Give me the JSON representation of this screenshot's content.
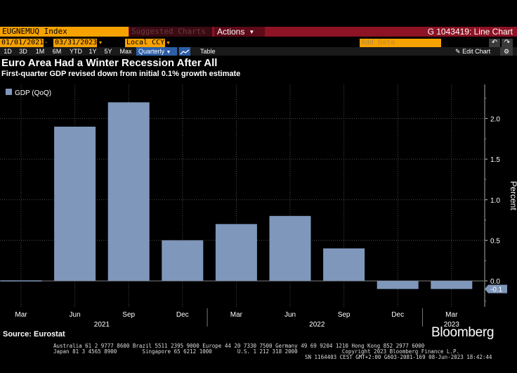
{
  "toolbar": {
    "ticker": "EUGNEMUQ Index",
    "suggested": "Suggested Charts",
    "actions": "Actions",
    "window_title": "G 1043419: Line Chart",
    "start_date": "01/01/2021",
    "end_date": "03/31/2023",
    "currency": "Local CCY",
    "add_data_placeholder": "Add Data",
    "edit_chart": "Edit Chart",
    "ranges": [
      "1D",
      "3D",
      "1M",
      "6M",
      "YTD",
      "1Y",
      "5Y",
      "Max"
    ],
    "frequency": "Quarterly",
    "table": "Table"
  },
  "colors": {
    "bar": "#7f97bb",
    "orange": "#f6a200",
    "toolbar_red": "#8d1325",
    "accent_blue": "#2d5fa8"
  },
  "chart_data": {
    "type": "bar",
    "title": "Euro Area Had a Winter Recession After All",
    "subtitle": "First-quarter GDP revised down from initial 0.1% growth estimate",
    "xlabel": "",
    "ylabel": "Percent",
    "categories": [
      "Mar 2021",
      "Jun 2021",
      "Sep 2021",
      "Dec 2021",
      "Mar 2022",
      "Jun 2022",
      "Sep 2022",
      "Dec 2022",
      "Mar 2023"
    ],
    "series": [
      {
        "name": "GDP (QoQ)",
        "values": [
          0.0,
          1.9,
          2.2,
          0.5,
          0.7,
          0.8,
          0.4,
          -0.1,
          -0.1
        ]
      }
    ],
    "last_value_label": "-0.1",
    "x_tick_labels": [
      "Mar",
      "Jun",
      "Sep",
      "Dec",
      "Mar",
      "Jun",
      "Sep",
      "Dec",
      "Mar"
    ],
    "x_year_labels": [
      "2021",
      "2022",
      "2023"
    ],
    "y_ticks": [
      0.0,
      0.5,
      1.0,
      1.5,
      2.0
    ],
    "y_tick_labels": [
      "0.0",
      "0.5",
      "1.0",
      "1.5",
      "2.0"
    ],
    "ylim": [
      -0.32,
      2.42
    ],
    "grid": true,
    "legend_position": "top-left"
  },
  "footer": {
    "source": "Source: Eurostat",
    "brand": "Bloomberg",
    "phones_line1": "Australia 61 2 9777 8600 Brazil 5511 2395 9000 Europe 44 20 7330 7500 Germany 49 69 9204 1210 Hong Kong 852 2977 6000",
    "phones_line2": "Japan 81 3 4565 8900        Singapore 65 6212 1000        U.S. 1 212 318 2000              Copyright 2023 Bloomberg Finance L.P.",
    "session_line": "SN 1164403 CEST GMT+2:00 G603-2081-169 08-Jun-2023 18:42:44"
  }
}
